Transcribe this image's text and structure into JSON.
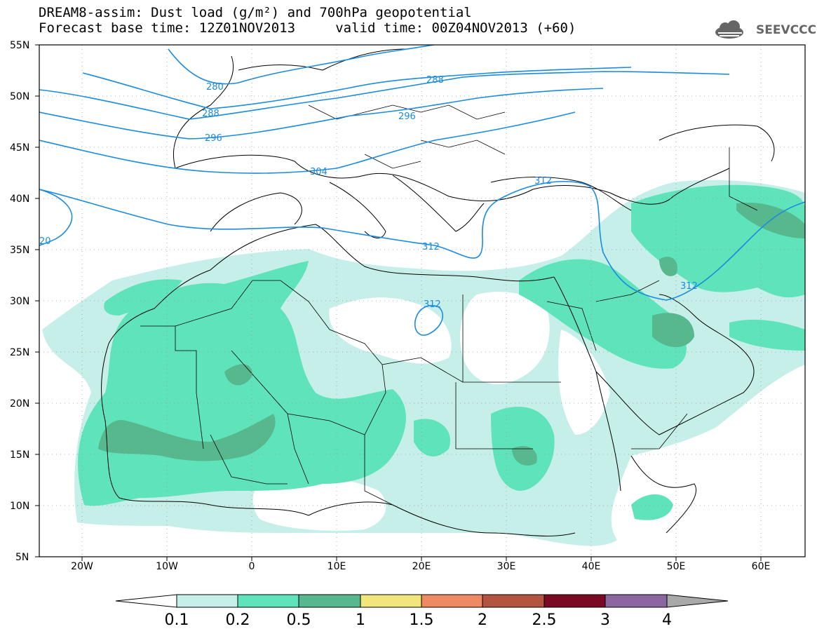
{
  "title": {
    "line1": "DREAM8-assim: Dust load (g/m²) and 700hPa geopotential",
    "line2": "Forecast base time: 12Z01NOV2013     valid time: 00Z04NOV2013 (+60)"
  },
  "logo": {
    "text": "SEEVCCC",
    "icon": "cloud-icon"
  },
  "map": {
    "lat_labels": [
      "55N",
      "50N",
      "45N",
      "40N",
      "35N",
      "30N",
      "25N",
      "20N",
      "15N",
      "10N",
      "5N"
    ],
    "lon_labels": [
      "20W",
      "10W",
      "0",
      "10E",
      "20E",
      "30E",
      "40E",
      "50E",
      "60E"
    ],
    "lon_range": [
      -25,
      65
    ],
    "lat_range": [
      5,
      55
    ],
    "contour_labels": [
      "280",
      "288",
      "288",
      "296",
      "296",
      "304",
      "312",
      "312",
      "312",
      "312",
      "20"
    ]
  },
  "colorbar": {
    "labels": [
      "0.1",
      "0.2",
      "0.5",
      "1",
      "1.5",
      "2",
      "2.5",
      "3",
      "4"
    ],
    "colors": [
      "#ffffff",
      "#c6efe9",
      "#5ee3bb",
      "#57b88e",
      "#f1e67b",
      "#ed8a64",
      "#b35440",
      "#7a0a24",
      "#8c679f",
      "#a9a9a9"
    ]
  }
}
